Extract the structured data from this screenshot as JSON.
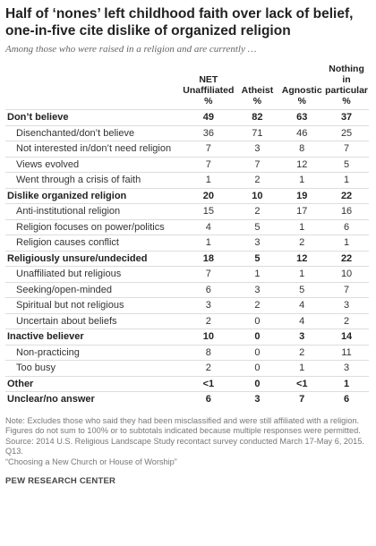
{
  "header": {
    "title": [
      "Half of ‘nones’ left childhood faith over lack of belief,",
      "one-in-five cite dislike of organized religion"
    ],
    "subtitle": "Among those who were raised in a religion and are currently …"
  },
  "table": {
    "columns": [
      [
        "NET",
        "Unaffiliated",
        "%"
      ],
      [
        "Atheist",
        "%"
      ],
      [
        "Agnostic",
        "%"
      ],
      [
        "Nothing in",
        "particular",
        "%"
      ]
    ],
    "groups": [
      {
        "label": "Don’t believe",
        "values": [
          "49",
          "82",
          "63",
          "37"
        ],
        "items": [
          {
            "label": "Disenchanted/don’t believe",
            "values": [
              "36",
              "71",
              "46",
              "25"
            ]
          },
          {
            "label": "Not interested in/don’t need religion",
            "values": [
              "7",
              "3",
              "8",
              "7"
            ]
          },
          {
            "label": "Views evolved",
            "values": [
              "7",
              "7",
              "12",
              "5"
            ]
          },
          {
            "label": "Went through a crisis of faith",
            "values": [
              "1",
              "2",
              "1",
              "1"
            ]
          }
        ]
      },
      {
        "label": "Dislike organized religion",
        "values": [
          "20",
          "10",
          "19",
          "22"
        ],
        "items": [
          {
            "label": "Anti-institutional religion",
            "values": [
              "15",
              "2",
              "17",
              "16"
            ]
          },
          {
            "label": "Religion focuses on power/politics",
            "values": [
              "4",
              "5",
              "1",
              "6"
            ]
          },
          {
            "label": "Religion causes conflict",
            "values": [
              "1",
              "3",
              "2",
              "1"
            ]
          }
        ]
      },
      {
        "label": "Religiously unsure/undecided",
        "values": [
          "18",
          "5",
          "12",
          "22"
        ],
        "items": [
          {
            "label": "Unaffiliated but religious",
            "values": [
              "7",
              "1",
              "1",
              "10"
            ]
          },
          {
            "label": "Seeking/open-minded",
            "values": [
              "6",
              "3",
              "5",
              "7"
            ]
          },
          {
            "label": "Spiritual but not religious",
            "values": [
              "3",
              "2",
              "4",
              "3"
            ]
          },
          {
            "label": "Uncertain about beliefs",
            "values": [
              "2",
              "0",
              "4",
              "2"
            ]
          }
        ]
      },
      {
        "label": "Inactive believer",
        "values": [
          "10",
          "0",
          "3",
          "14"
        ],
        "items": [
          {
            "label": "Non-practicing",
            "values": [
              "8",
              "0",
              "2",
              "11"
            ]
          },
          {
            "label": "Too busy",
            "values": [
              "2",
              "0",
              "1",
              "3"
            ]
          }
        ]
      },
      {
        "label": "Other",
        "values": [
          "<1",
          "0",
          "<1",
          "1"
        ]
      },
      {
        "label": "Unclear/no answer",
        "values": [
          "6",
          "3",
          "7",
          "6"
        ]
      }
    ]
  },
  "notes": [
    "Note: Excludes those who said they had been misclassified and were still affiliated with a religion. Figures do not sum to 100% or to subtotals indicated because multiple responses were permitted.",
    "Source: 2014 U.S. Religious Landscape Study recontact survey conducted March 17-May 6, 2015. Q13.",
    "“Choosing a New Church or House of Worship”"
  ],
  "footer": "PEW RESEARCH CENTER"
}
